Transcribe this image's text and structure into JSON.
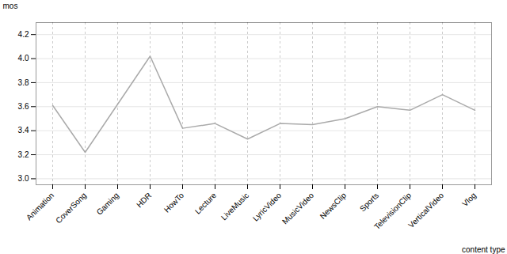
{
  "chart_data": {
    "type": "line",
    "xlabel": "content type",
    "ylabel": "mos",
    "categories": [
      "Animation",
      "CoverSong",
      "Gaming",
      "HDR",
      "HowTo",
      "Lecture",
      "LiveMusic",
      "LyricVideo",
      "MusicVideo",
      "NewsClip",
      "Sports",
      "TelevisionClip",
      "VerticalVideo",
      "Vlog"
    ],
    "values": [
      3.61,
      3.22,
      3.62,
      4.02,
      3.42,
      3.46,
      3.33,
      3.46,
      3.45,
      3.5,
      3.6,
      3.57,
      3.7,
      3.57
    ],
    "color": "#aaaaaa",
    "ylim": [
      2.95,
      4.3
    ],
    "yticks": [
      {
        "value": 3.0,
        "label": "3.0"
      },
      3.2,
      3.4,
      3.6,
      3.8,
      {
        "value": 4.0,
        "label": "4.0"
      },
      4.2
    ],
    "grid": true
  }
}
